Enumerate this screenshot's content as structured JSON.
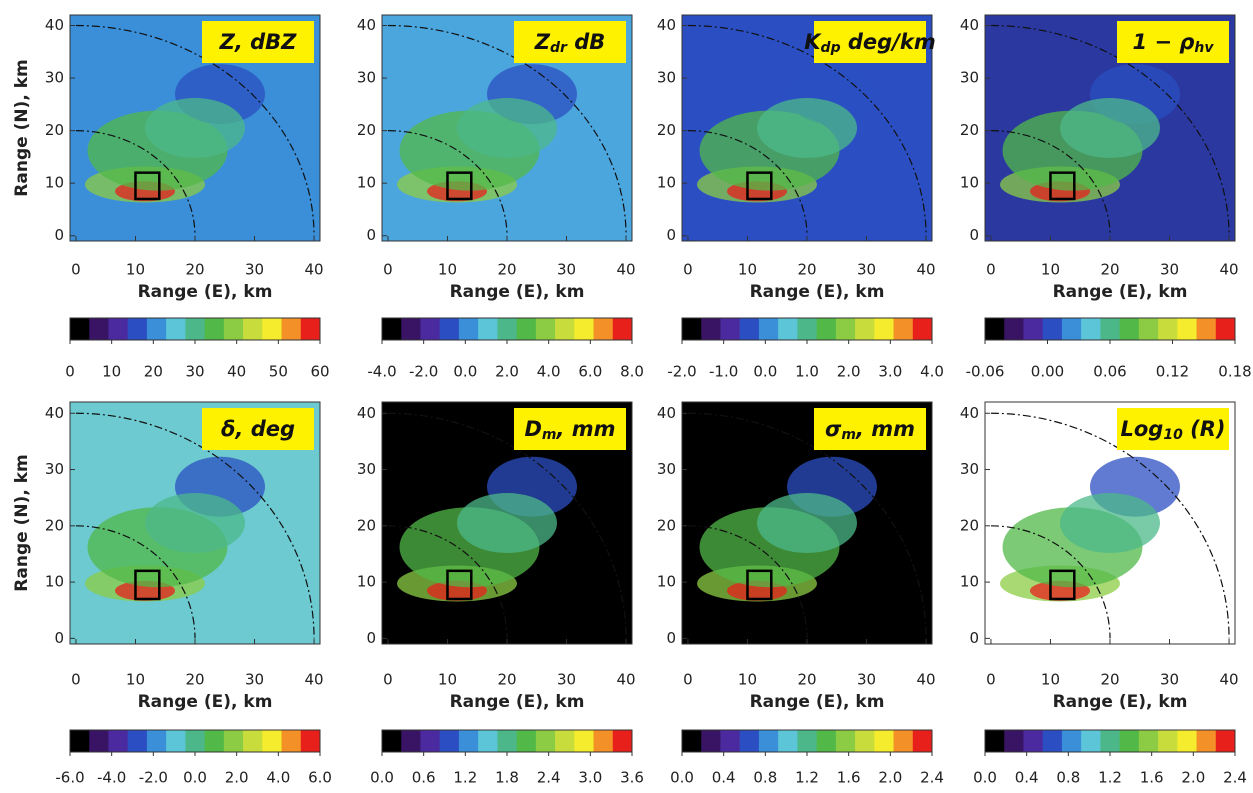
{
  "colormap": [
    "#000000",
    "#3a1464",
    "#4b2aa0",
    "#2b4fc2",
    "#3a8fd8",
    "#5cc6d8",
    "#4cb88a",
    "#52b848",
    "#8ccc44",
    "#c8dc3c",
    "#f4ec2c",
    "#f49028",
    "#e8201c"
  ],
  "chart_data": [
    {
      "type": "heatmap",
      "title": {
        "text": "Z, dBZ"
      },
      "background": "#3a8fd8",
      "ylabel": "Range (N), km",
      "xlabel": "Range (E), km",
      "xlim": [
        -1,
        41
      ],
      "ylim": [
        -1,
        42
      ],
      "xticks": [
        0,
        10,
        20,
        30,
        40
      ],
      "yticks": [
        0,
        10,
        20,
        30,
        40
      ],
      "colorbar_ticks": [
        0,
        10,
        20,
        30,
        40,
        50,
        60
      ]
    },
    {
      "type": "heatmap",
      "title": {
        "text": "Z",
        "sub": "dr",
        "unit": " dB"
      },
      "background": "#4ba6de",
      "xlabel": "Range (E), km",
      "xlim": [
        -1,
        41
      ],
      "ylim": [
        -1,
        42
      ],
      "xticks": [
        0,
        10,
        20,
        30,
        40
      ],
      "yticks": [
        0,
        10,
        20,
        30,
        40
      ],
      "colorbar_ticks": [
        {
          "value": -4,
          "label": "-4.0"
        },
        {
          "value": -2,
          "label": "-2.0"
        },
        {
          "value": 0,
          "label": "0.0"
        },
        {
          "value": 2,
          "label": "2.0"
        },
        {
          "value": 4,
          "label": "4.0"
        },
        {
          "value": 6,
          "label": "6.0"
        },
        {
          "value": 8,
          "label": "8.0"
        }
      ]
    },
    {
      "type": "heatmap",
      "title": {
        "text": "K",
        "sub": "dp",
        "unit": " deg/km"
      },
      "background": "#2b4fc2",
      "xlabel": "Range (E), km",
      "xlim": [
        -1,
        41
      ],
      "ylim": [
        -1,
        42
      ],
      "xticks": [
        0,
        10,
        20,
        30,
        40
      ],
      "yticks": [
        0,
        10,
        20,
        30,
        40
      ],
      "colorbar_ticks": [
        {
          "value": -2,
          "label": "-2.0"
        },
        {
          "value": -1,
          "label": "-1.0"
        },
        {
          "value": 0,
          "label": "0.0"
        },
        {
          "value": 1,
          "label": "1.0"
        },
        {
          "value": 2,
          "label": "2.0"
        },
        {
          "value": 3,
          "label": "3.0"
        },
        {
          "value": 4,
          "label": "4.0"
        }
      ]
    },
    {
      "type": "heatmap",
      "title": {
        "text": "1 − ρ",
        "sub": "hv"
      },
      "background": "#2a38a0",
      "xlabel": "Range (E), km",
      "xlim": [
        -1,
        41
      ],
      "ylim": [
        -1,
        42
      ],
      "xticks": [
        0,
        10,
        20,
        30,
        40
      ],
      "yticks": [
        0,
        10,
        20,
        30,
        40
      ],
      "colorbar_ticks": [
        {
          "value": -0.06,
          "label": "-0.06"
        },
        {
          "value": 0,
          "label": "0.00"
        },
        {
          "value": 0.06,
          "label": "0.06"
        },
        {
          "value": 0.12,
          "label": "0.12"
        },
        {
          "value": 0.18,
          "label": "0.18"
        }
      ]
    },
    {
      "type": "heatmap",
      "title": {
        "text": "δ, deg"
      },
      "background": "#6ccad0",
      "ylabel": "Range (N), km",
      "xlabel": "Range (E), km",
      "xlim": [
        -1,
        41
      ],
      "ylim": [
        -1,
        42
      ],
      "xticks": [
        0,
        10,
        20,
        30,
        40
      ],
      "yticks": [
        0,
        10,
        20,
        30,
        40
      ],
      "colorbar_ticks": [
        {
          "value": -6,
          "label": "-6.0"
        },
        {
          "value": -4,
          "label": "-4.0"
        },
        {
          "value": -2,
          "label": "-2.0"
        },
        {
          "value": 0,
          "label": "0.0"
        },
        {
          "value": 2,
          "label": "2.0"
        },
        {
          "value": 4,
          "label": "4.0"
        },
        {
          "value": 6,
          "label": "6.0"
        }
      ]
    },
    {
      "type": "heatmap",
      "title": {
        "text": "D",
        "sub": "m",
        "unit": ", mm"
      },
      "background": "#000000",
      "xlabel": "Range (E), km",
      "xlim": [
        -1,
        41
      ],
      "ylim": [
        -1,
        42
      ],
      "xticks": [
        0,
        10,
        20,
        30,
        40
      ],
      "yticks": [
        0,
        10,
        20,
        30,
        40
      ],
      "colorbar_ticks": [
        {
          "value": 0,
          "label": "0.0"
        },
        0.6,
        1.2,
        1.8,
        2.4,
        {
          "value": 3,
          "label": "3.0"
        },
        3.6
      ]
    },
    {
      "type": "heatmap",
      "title": {
        "text": "σ",
        "sub": "m",
        "unit": ", mm"
      },
      "background": "#000000",
      "xlabel": "Range (E), km",
      "xlim": [
        -1,
        41
      ],
      "ylim": [
        -1,
        42
      ],
      "xticks": [
        0,
        10,
        20,
        30,
        40
      ],
      "yticks": [
        0,
        10,
        20,
        30,
        40
      ],
      "colorbar_ticks": [
        {
          "value": 0,
          "label": "0.0"
        },
        0.4,
        0.8,
        1.2,
        1.6,
        {
          "value": 2,
          "label": "2.0"
        },
        2.4
      ]
    },
    {
      "type": "heatmap",
      "title": {
        "text": "Log",
        "sub": "10",
        "unit": " (R)"
      },
      "background": "#ffffff",
      "xlabel": "Range (E), km",
      "xlim": [
        -1,
        41
      ],
      "ylim": [
        -1,
        42
      ],
      "xticks": [
        0,
        10,
        20,
        30,
        40
      ],
      "yticks": [
        0,
        10,
        20,
        30,
        40
      ],
      "colorbar_ticks": [
        {
          "value": 0,
          "label": "0.0"
        },
        0.4,
        0.8,
        1.2,
        1.6,
        {
          "value": 2,
          "label": "2.0"
        },
        2.4
      ]
    }
  ]
}
